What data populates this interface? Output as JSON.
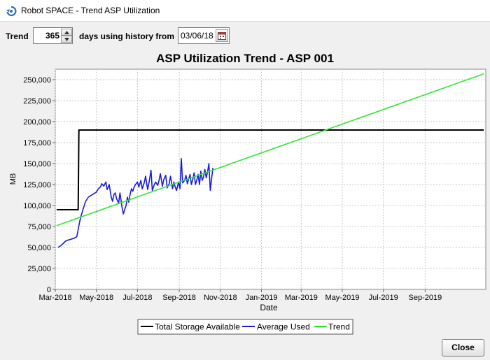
{
  "window": {
    "title": "Robot SPACE - Trend ASP Utilization"
  },
  "toolbar": {
    "trend_label": "Trend",
    "days_value": "365",
    "days_label": "days using history from",
    "date_value": "03/06/18"
  },
  "buttons": {
    "close": "Close"
  },
  "colors": {
    "total": "#000000",
    "average": "#1a1adc",
    "trend": "#33e633",
    "grid": "#c8c8c8"
  },
  "chart_data": {
    "type": "line",
    "title": "ASP Utilization Trend - ASP 001",
    "xlabel": "Date",
    "ylabel": "MB",
    "ylim": [
      0,
      262500
    ],
    "xlim": [
      "2018-03-01",
      "2019-11-30"
    ],
    "yticks": [
      0,
      25000,
      50000,
      75000,
      100000,
      125000,
      150000,
      175000,
      200000,
      225000,
      250000
    ],
    "ytick_labels": [
      "0",
      "25,000",
      "50,000",
      "75,000",
      "100,000",
      "125,000",
      "150,000",
      "175,000",
      "200,000",
      "225,000",
      "250,000"
    ],
    "xticks": [
      "2018-03-01",
      "2018-05-01",
      "2018-07-01",
      "2018-09-01",
      "2018-11-01",
      "2019-01-01",
      "2019-03-01",
      "2019-05-01",
      "2019-07-01",
      "2019-09-01"
    ],
    "xtick_labels": [
      "Mar-2018",
      "May-2018",
      "Jul-2018",
      "Sep-2018",
      "Nov-2018",
      "Jan-2019",
      "Mar-2019",
      "May-2019",
      "Jul-2019",
      "Sep-2019"
    ],
    "grid": true,
    "legend_position": "bottom",
    "series": [
      {
        "name": "Total Storage Available",
        "x": [
          "2018-03-03",
          "2018-04-04",
          "2018-04-05",
          "2019-11-27"
        ],
        "y": [
          95000,
          95000,
          190000,
          190000
        ]
      },
      {
        "name": "Average Used",
        "x": [
          "2018-03-05",
          "2018-03-09",
          "2018-03-13",
          "2018-03-17",
          "2018-03-21",
          "2018-03-25",
          "2018-03-29",
          "2018-04-02",
          "2018-04-06",
          "2018-04-08",
          "2018-04-11",
          "2018-04-15",
          "2018-04-19",
          "2018-04-23",
          "2018-04-27",
          "2018-05-01",
          "2018-05-04",
          "2018-05-07",
          "2018-05-09",
          "2018-05-12",
          "2018-05-15",
          "2018-05-17",
          "2018-05-20",
          "2018-05-23",
          "2018-05-25",
          "2018-05-27",
          "2018-05-29",
          "2018-05-31",
          "2018-06-03",
          "2018-06-05",
          "2018-06-08",
          "2018-06-10",
          "2018-06-12",
          "2018-06-14",
          "2018-06-16",
          "2018-06-18",
          "2018-06-20",
          "2018-06-22",
          "2018-06-24",
          "2018-06-26",
          "2018-06-28",
          "2018-07-01",
          "2018-07-03",
          "2018-07-06",
          "2018-07-08",
          "2018-07-11",
          "2018-07-13",
          "2018-07-16",
          "2018-07-18",
          "2018-07-21",
          "2018-07-23",
          "2018-07-26",
          "2018-07-28",
          "2018-07-31",
          "2018-08-02",
          "2018-08-04",
          "2018-08-07",
          "2018-08-09",
          "2018-08-12",
          "2018-08-14",
          "2018-08-17",
          "2018-08-19",
          "2018-08-22",
          "2018-08-24",
          "2018-08-26",
          "2018-08-28",
          "2018-08-31",
          "2018-09-02",
          "2018-09-04",
          "2018-09-06",
          "2018-09-09",
          "2018-09-11",
          "2018-09-13",
          "2018-09-15",
          "2018-09-17",
          "2018-09-19",
          "2018-09-21",
          "2018-09-23",
          "2018-09-25",
          "2018-09-27",
          "2018-09-29",
          "2018-10-01",
          "2018-10-03",
          "2018-10-05",
          "2018-10-07",
          "2018-10-09",
          "2018-10-11",
          "2018-10-13",
          "2018-10-15",
          "2018-10-17",
          "2018-10-19",
          "2018-10-21"
        ],
        "y": [
          50000,
          52000,
          55000,
          58000,
          59000,
          60000,
          61000,
          63000,
          80000,
          87000,
          95000,
          105000,
          110000,
          112000,
          114000,
          116000,
          120000,
          122000,
          126000,
          123000,
          128000,
          119000,
          125000,
          110000,
          105000,
          113000,
          115000,
          108000,
          103000,
          115000,
          98000,
          90000,
          95000,
          100000,
          110000,
          104000,
          113000,
          120000,
          117000,
          122000,
          125000,
          128000,
          122000,
          130000,
          120000,
          127000,
          135000,
          119000,
          127000,
          142000,
          118000,
          125000,
          128000,
          124000,
          130000,
          138000,
          123000,
          131000,
          136000,
          121000,
          126000,
          135000,
          120000,
          128000,
          122000,
          118000,
          128000,
          120000,
          156000,
          127000,
          130000,
          136000,
          126000,
          132000,
          137000,
          125000,
          131000,
          139000,
          125000,
          130000,
          137000,
          125000,
          141000,
          130000,
          134000,
          143000,
          133000,
          140000,
          150000,
          118000,
          132000,
          145000
        ]
      },
      {
        "name": "Trend",
        "x": [
          "2018-03-03",
          "2019-11-27"
        ],
        "y": [
          76000,
          257000
        ]
      }
    ]
  }
}
